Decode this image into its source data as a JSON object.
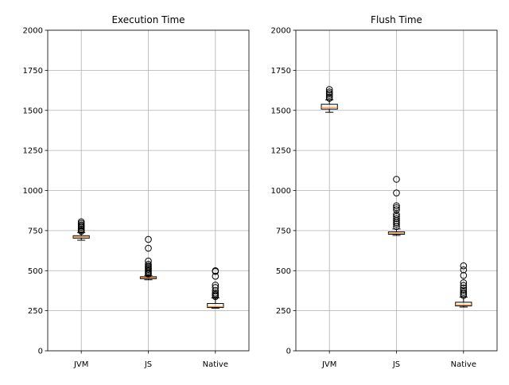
{
  "chart_data": [
    {
      "type": "box",
      "title": "Execution Time",
      "xlabel": "",
      "ylabel": "",
      "categories": [
        "JVM",
        "JS",
        "Native"
      ],
      "ylim": [
        0,
        2000
      ],
      "yticks": [
        0,
        250,
        500,
        750,
        1000,
        1250,
        1500,
        1750,
        2000
      ],
      "grid": true,
      "boxes": [
        {
          "category": "JVM",
          "whisker_low": 690,
          "q1": 703,
          "median": 710,
          "q3": 718,
          "whisker_high": 738,
          "outliers": [
            745,
            752,
            760,
            770,
            778,
            785,
            795,
            805
          ]
        },
        {
          "category": "JS",
          "whisker_low": 443,
          "q1": 450,
          "median": 456,
          "q3": 462,
          "whisker_high": 470,
          "outliers": [
            478,
            485,
            492,
            500,
            508,
            515,
            522,
            530,
            540,
            560,
            640,
            695
          ]
        },
        {
          "category": "Native",
          "whisker_low": 266,
          "q1": 270,
          "median": 276,
          "q3": 295,
          "whisker_high": 330,
          "outliers": [
            338,
            345,
            352,
            360,
            375,
            395,
            410,
            465,
            495,
            500
          ]
        }
      ]
    },
    {
      "type": "box",
      "title": "Flush Time",
      "xlabel": "",
      "ylabel": "",
      "categories": [
        "JVM",
        "JS",
        "Native"
      ],
      "ylim": [
        0,
        2000
      ],
      "yticks": [
        0,
        250,
        500,
        750,
        1000,
        1250,
        1500,
        1750,
        2000
      ],
      "grid": true,
      "boxes": [
        {
          "category": "JVM",
          "whisker_low": 1488,
          "q1": 1508,
          "median": 1518,
          "q3": 1538,
          "whisker_high": 1565,
          "outliers": [
            1575,
            1585,
            1595,
            1605,
            1615,
            1630
          ]
        },
        {
          "category": "JS",
          "whisker_low": 720,
          "q1": 727,
          "median": 733,
          "q3": 742,
          "whisker_high": 760,
          "outliers": [
            775,
            790,
            800,
            812,
            825,
            838,
            850,
            880,
            893,
            905,
            985,
            1070
          ]
        },
        {
          "category": "Native",
          "whisker_low": 273,
          "q1": 280,
          "median": 287,
          "q3": 303,
          "whisker_high": 335,
          "outliers": [
            345,
            355,
            365,
            378,
            392,
            408,
            425,
            470,
            505,
            530
          ]
        }
      ]
    }
  ]
}
